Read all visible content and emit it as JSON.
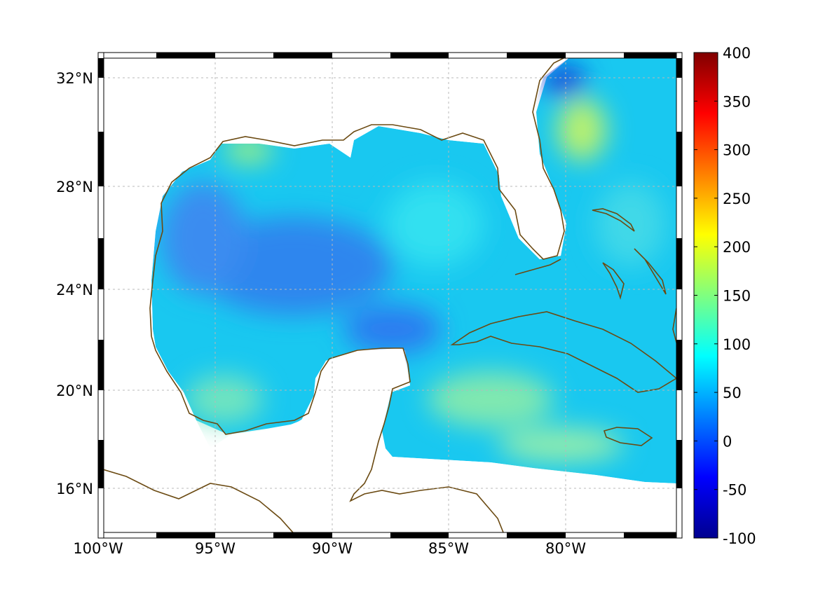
{
  "map": {
    "type": "heatmap",
    "region": "Gulf of Mexico and Caribbean",
    "projection": "Mercator",
    "lon_range": [
      -100,
      -75
    ],
    "lat_range": [
      14.5,
      33
    ],
    "grid": true,
    "coastline_color": "#6b4a12",
    "lon_ticks": [
      {
        "value": -100,
        "label": "100°W"
      },
      {
        "value": -95,
        "label": "95°W"
      },
      {
        "value": -90,
        "label": "90°W"
      },
      {
        "value": -85,
        "label": "85°W"
      },
      {
        "value": -80,
        "label": "80°W"
      }
    ],
    "lat_ticks": [
      {
        "value": 32,
        "label": "32°N"
      },
      {
        "value": 28,
        "label": "28°N"
      },
      {
        "value": 24,
        "label": "24°N"
      },
      {
        "value": 20,
        "label": "20°N"
      },
      {
        "value": 16,
        "label": "16°N"
      }
    ],
    "field_typical_value": 80,
    "field_range_observed": [
      20,
      190
    ]
  },
  "colorbar": {
    "colormap": "jet",
    "min": -100,
    "max": 400,
    "tick_labels": [
      "400",
      "350",
      "300",
      "250",
      "200",
      "150",
      "100",
      "50",
      "0",
      "-50",
      "-100"
    ],
    "tick_values": [
      400,
      350,
      300,
      250,
      200,
      150,
      100,
      50,
      0,
      -50,
      -100
    ]
  }
}
